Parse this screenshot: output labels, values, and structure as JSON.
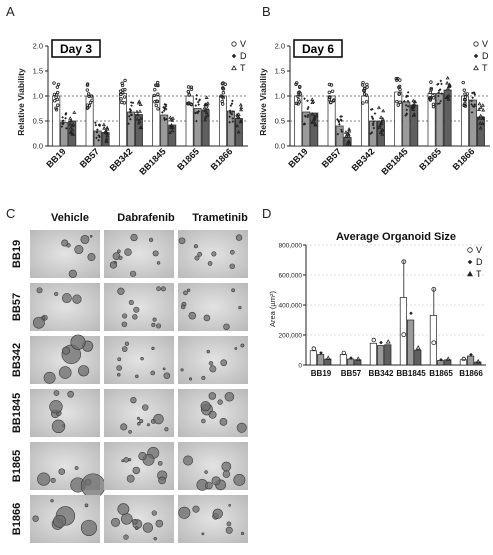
{
  "panels": {
    "a": "A",
    "b": "B",
    "c": "C",
    "d": "D"
  },
  "legend_labels": [
    "V",
    "D",
    "T"
  ],
  "chart_data": [
    {
      "id": "A",
      "type": "bar",
      "title": "Day 3",
      "ylabel": "Relative Viability",
      "ylim": [
        0,
        2.0
      ],
      "yticks": [
        "0.0",
        "0.5",
        "1.0",
        "1.5",
        "2.0"
      ],
      "ref_lines": [
        1.0,
        0.5
      ],
      "categories": [
        "BB19",
        "BB57",
        "BB342",
        "BB1845",
        "B1865",
        "B1866"
      ],
      "series": [
        {
          "name": "V",
          "values": [
            1.0,
            1.0,
            1.05,
            1.0,
            1.0,
            1.0
          ]
        },
        {
          "name": "D",
          "values": [
            0.47,
            0.3,
            0.68,
            0.62,
            0.75,
            0.7
          ]
        },
        {
          "name": "T",
          "values": [
            0.5,
            0.27,
            0.63,
            0.42,
            0.72,
            0.55
          ]
        }
      ]
    },
    {
      "id": "B",
      "type": "bar",
      "title": "Day 6",
      "ylabel": "Relative Viability",
      "ylim": [
        0,
        2.0
      ],
      "yticks": [
        "0.0",
        "0.5",
        "1.0",
        "1.5",
        "2.0"
      ],
      "ref_lines": [
        1.0,
        0.5
      ],
      "categories": [
        "BB19",
        "BB57",
        "BB342",
        "BB1845",
        "B1865",
        "B1866"
      ],
      "series": [
        {
          "name": "V",
          "values": [
            1.0,
            1.0,
            1.0,
            1.08,
            1.05,
            1.0
          ]
        },
        {
          "name": "D",
          "values": [
            0.68,
            0.4,
            0.5,
            0.88,
            1.05,
            0.92
          ]
        },
        {
          "name": "T",
          "values": [
            0.66,
            0.17,
            0.5,
            0.82,
            1.12,
            0.58
          ]
        }
      ]
    },
    {
      "id": "D",
      "type": "bar",
      "title": "Average Organoid Size",
      "ylabel": "Area (µm²)",
      "ylim": [
        0,
        800000
      ],
      "yticks": [
        "0",
        "200,000",
        "400,000",
        "600,000",
        "800,000"
      ],
      "categories": [
        "BB19",
        "BB57",
        "BB342",
        "BB1845",
        "B1865",
        "B1866"
      ],
      "series": [
        {
          "name": "V",
          "values": [
            95000,
            70000,
            145000,
            450000,
            330000,
            35000
          ]
        },
        {
          "name": "D",
          "values": [
            70000,
            40000,
            130000,
            300000,
            30000,
            60000
          ]
        },
        {
          "name": "T",
          "values": [
            40000,
            35000,
            135000,
            100000,
            35000,
            20000
          ]
        }
      ]
    }
  ],
  "micrographs": {
    "columns": [
      "Vehicle",
      "Dabrafenib",
      "Trametinib"
    ],
    "rows": [
      "BB19",
      "BB57",
      "BB342",
      "BB1845",
      "B1865",
      "B1866"
    ]
  }
}
